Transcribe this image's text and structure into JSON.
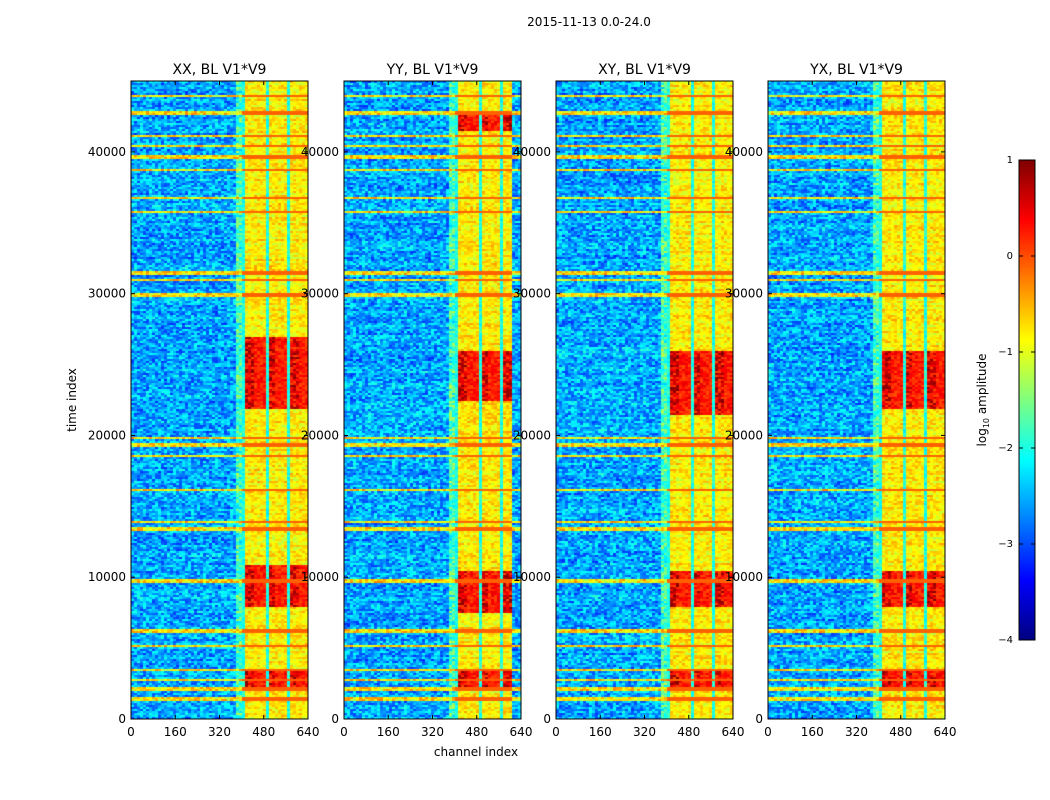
{
  "figure": {
    "suptitle": "2015-11-13 0.0-24.0",
    "ylabel": "time index",
    "xlabel": "channel index"
  },
  "colorbar": {
    "label_prefix": "log",
    "label_sub": "10",
    "label_suffix": " amplitude",
    "range": [
      -4,
      1
    ],
    "ticks": [
      1,
      0,
      -1,
      -2,
      -3,
      -4
    ],
    "tick_labels": [
      "1",
      "0",
      "−1",
      "−2",
      "−3",
      "−4"
    ],
    "colormap": "jet",
    "colors": [
      "#00007f",
      "#0000ff",
      "#007fff",
      "#00ffff",
      "#7fff7f",
      "#ffff00",
      "#ff7f00",
      "#ff0000",
      "#7f0000"
    ]
  },
  "chart_data": {
    "type": "heatmap",
    "x_range": [
      0,
      640
    ],
    "y_range": [
      0,
      45000
    ],
    "x_ticks": [
      0,
      160,
      320,
      480,
      640
    ],
    "x_tick_labels": [
      "0",
      "160",
      "320",
      "480",
      "640"
    ],
    "y_ticks": [
      0,
      10000,
      20000,
      30000,
      40000
    ],
    "y_tick_labels": [
      "0",
      "10000",
      "20000",
      "30000",
      "40000"
    ],
    "panels": [
      {
        "title": "XX, BL V1*V9",
        "band_channels": [
          400,
          640
        ],
        "hot_time_ranges": [
          [
            2000,
            3500
          ],
          [
            8000,
            11000
          ],
          [
            22000,
            27000
          ]
        ]
      },
      {
        "title": "YY, BL V1*V9",
        "band_channels": [
          400,
          600
        ],
        "hot_time_ranges": [
          [
            2000,
            3500
          ],
          [
            7500,
            10500
          ],
          [
            22500,
            26000
          ],
          [
            41500,
            43000
          ]
        ]
      },
      {
        "title": "XY, BL V1*V9",
        "band_channels": [
          400,
          640
        ],
        "hot_time_ranges": [
          [
            2000,
            3500
          ],
          [
            8000,
            10500
          ],
          [
            21500,
            26000
          ]
        ]
      },
      {
        "title": "YX, BL V1*V9",
        "band_channels": [
          400,
          640
        ],
        "hot_time_ranges": [
          [
            2000,
            3500
          ],
          [
            8000,
            10500
          ],
          [
            22000,
            26000
          ]
        ]
      }
    ],
    "horizontal_stripes_time": [
      1500,
      2200,
      2800,
      3500,
      5200,
      6300,
      9800,
      13500,
      14000,
      16200,
      18600,
      19400,
      19900,
      30000,
      31000,
      31500,
      35800,
      36800,
      38800,
      39700,
      40500,
      41200,
      42800,
      44000
    ]
  }
}
